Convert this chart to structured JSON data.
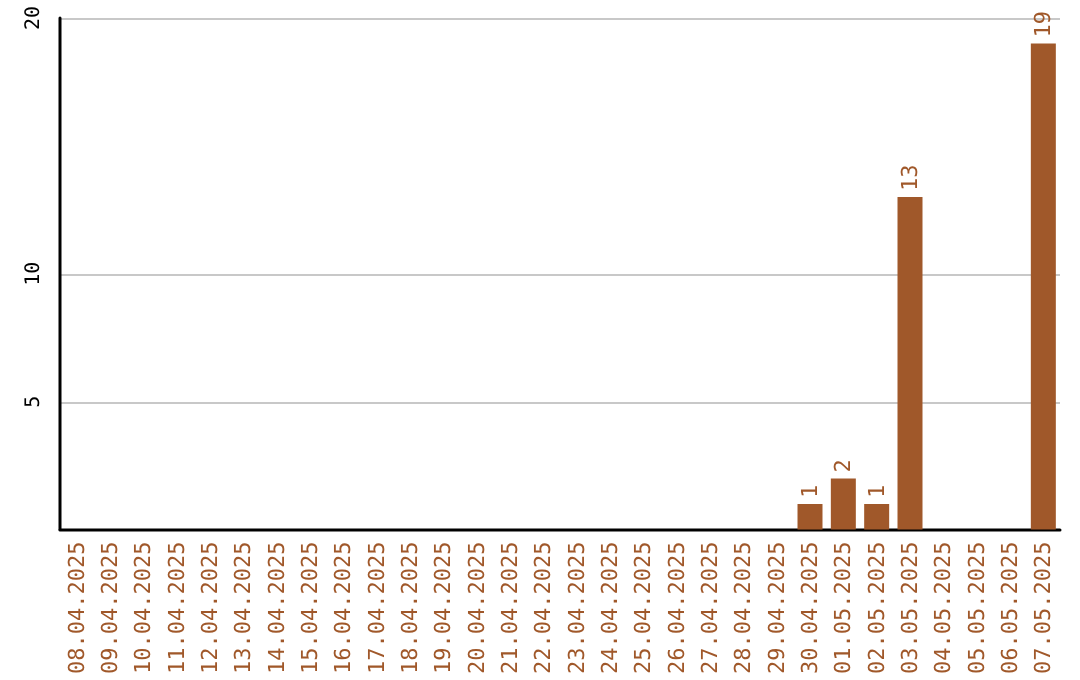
{
  "chart_data": {
    "type": "bar",
    "categories": [
      "08.04.2025",
      "09.04.2025",
      "10.04.2025",
      "11.04.2025",
      "12.04.2025",
      "13.04.2025",
      "14.04.2025",
      "15.04.2025",
      "16.04.2025",
      "17.04.2025",
      "18.04.2025",
      "19.04.2025",
      "20.04.2025",
      "21.04.2025",
      "22.04.2025",
      "23.04.2025",
      "24.04.2025",
      "25.04.2025",
      "26.04.2025",
      "27.04.2025",
      "28.04.2025",
      "29.04.2025",
      "30.04.2025",
      "01.05.2025",
      "02.05.2025",
      "03.05.2025",
      "04.05.2025",
      "05.05.2025",
      "06.05.2025",
      "07.05.2025"
    ],
    "values": [
      0,
      0,
      0,
      0,
      0,
      0,
      0,
      0,
      0,
      0,
      0,
      0,
      0,
      0,
      0,
      0,
      0,
      0,
      0,
      0,
      0,
      0,
      1,
      2,
      1,
      13,
      0,
      0,
      0,
      19
    ],
    "value_labels": [
      null,
      null,
      null,
      null,
      null,
      null,
      null,
      null,
      null,
      null,
      null,
      null,
      null,
      null,
      null,
      null,
      null,
      null,
      null,
      null,
      null,
      null,
      "1",
      "2",
      "1",
      "13",
      null,
      null,
      null,
      "19"
    ],
    "color": "#a0582a",
    "ylim": [
      0,
      20
    ],
    "yticks": [
      5,
      10,
      20
    ],
    "grid": "y"
  }
}
